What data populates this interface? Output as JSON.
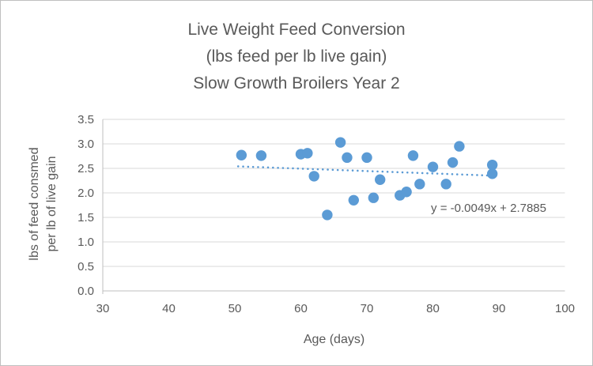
{
  "title_lines": [
    "Live Weight Feed Conversion",
    "(lbs feed per lb live gain)",
    "Slow Growth Broilers Year 2"
  ],
  "chart_data": {
    "type": "scatter",
    "title": "Live Weight Feed Conversion (lbs feed per lb live gain) Slow Growth Broilers Year 2",
    "xlabel": "Age (days)",
    "ylabel_lines": [
      "lbs of feed consmed",
      "per lb of live gain"
    ],
    "xlim": [
      30,
      100
    ],
    "ylim": [
      0,
      3.5
    ],
    "xticks": [
      30,
      40,
      50,
      60,
      70,
      80,
      90,
      100
    ],
    "yticks": [
      0.0,
      0.5,
      1.0,
      1.5,
      2.0,
      2.5,
      3.0,
      3.5
    ],
    "grid": true,
    "points": [
      [
        51,
        2.77
      ],
      [
        54,
        2.76
      ],
      [
        60,
        2.79
      ],
      [
        61,
        2.81
      ],
      [
        62,
        2.34
      ],
      [
        64,
        1.55
      ],
      [
        66,
        3.03
      ],
      [
        67,
        2.72
      ],
      [
        68,
        1.85
      ],
      [
        70,
        2.72
      ],
      [
        71,
        1.9
      ],
      [
        72,
        2.27
      ],
      [
        75,
        1.95
      ],
      [
        76,
        2.02
      ],
      [
        77,
        2.76
      ],
      [
        78,
        2.18
      ],
      [
        80,
        2.53
      ],
      [
        82,
        2.18
      ],
      [
        83,
        2.62
      ],
      [
        84,
        2.95
      ],
      [
        89,
        2.57
      ],
      [
        89,
        2.39
      ]
    ],
    "trendline": {
      "equation_label": "y = -0.0049x + 2.7885",
      "slope": -0.0049,
      "intercept": 2.7885,
      "x_start": 50.5,
      "x_end": 88.5,
      "style": "dotted"
    }
  },
  "colors": {
    "point": "#5B9BD5",
    "trendline": "#5B9BD5",
    "grid": "#D9D9D9",
    "axis": "#BFBFBF",
    "text": "#595959",
    "border": "#BFBFBF"
  }
}
